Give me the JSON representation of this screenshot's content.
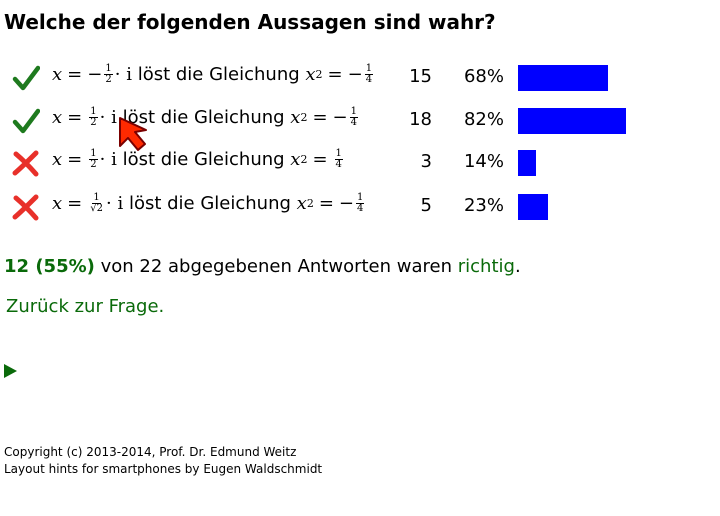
{
  "page": {
    "title": "Welche der folgenden Aussagen sind wahr?"
  },
  "answers": [
    {
      "correct": true,
      "mark_icon": "check-icon",
      "x_sign": "−",
      "x_num": "1",
      "x_den": "2",
      "rhs_sign": "−",
      "rhs_num": "1",
      "rhs_den": "4",
      "count": "15",
      "percent": "68%",
      "share": 0.68
    },
    {
      "correct": true,
      "mark_icon": "check-icon",
      "x_sign": "",
      "x_num": "1",
      "x_den": "2",
      "rhs_sign": "−",
      "rhs_num": "1",
      "rhs_den": "4",
      "count": "18",
      "percent": "82%",
      "share": 0.82
    },
    {
      "correct": false,
      "mark_icon": "cross-icon",
      "x_sign": "",
      "x_num": "1",
      "x_den": "2",
      "rhs_sign": "",
      "rhs_num": "1",
      "rhs_den": "4",
      "count": "3",
      "percent": "14%",
      "share": 0.14
    },
    {
      "correct": false,
      "mark_icon": "cross-icon",
      "x_sign": "",
      "x_num": "1",
      "x_den": "√2",
      "rhs_sign": "−",
      "rhs_num": "1",
      "rhs_den": "4",
      "count": "5",
      "percent": "23%",
      "share": 0.23
    }
  ],
  "statement_parts": {
    "x": "x",
    "eq": "=",
    "dot": "·",
    "i": "i",
    "text": "löst die Gleichung",
    "x2": "x",
    "exp": "2"
  },
  "summary": {
    "correct_count": "12 (55%)",
    "middle": "von 22 abgegebenen Antworten waren",
    "richtig": "richtig",
    "end": "."
  },
  "back_link": "Zurück zur Frage.",
  "footer": {
    "line1": "Copyright (c) 2013-2014, Prof. Dr. Edmund Weitz",
    "line2": "Layout hints for smartphones by Eugen Waldschmidt"
  },
  "colors": {
    "accent_green": "#0a6a0a",
    "check_green": "#1e7a1e",
    "cross_red": "#e8302a",
    "bar_blue": "#0000ff"
  }
}
